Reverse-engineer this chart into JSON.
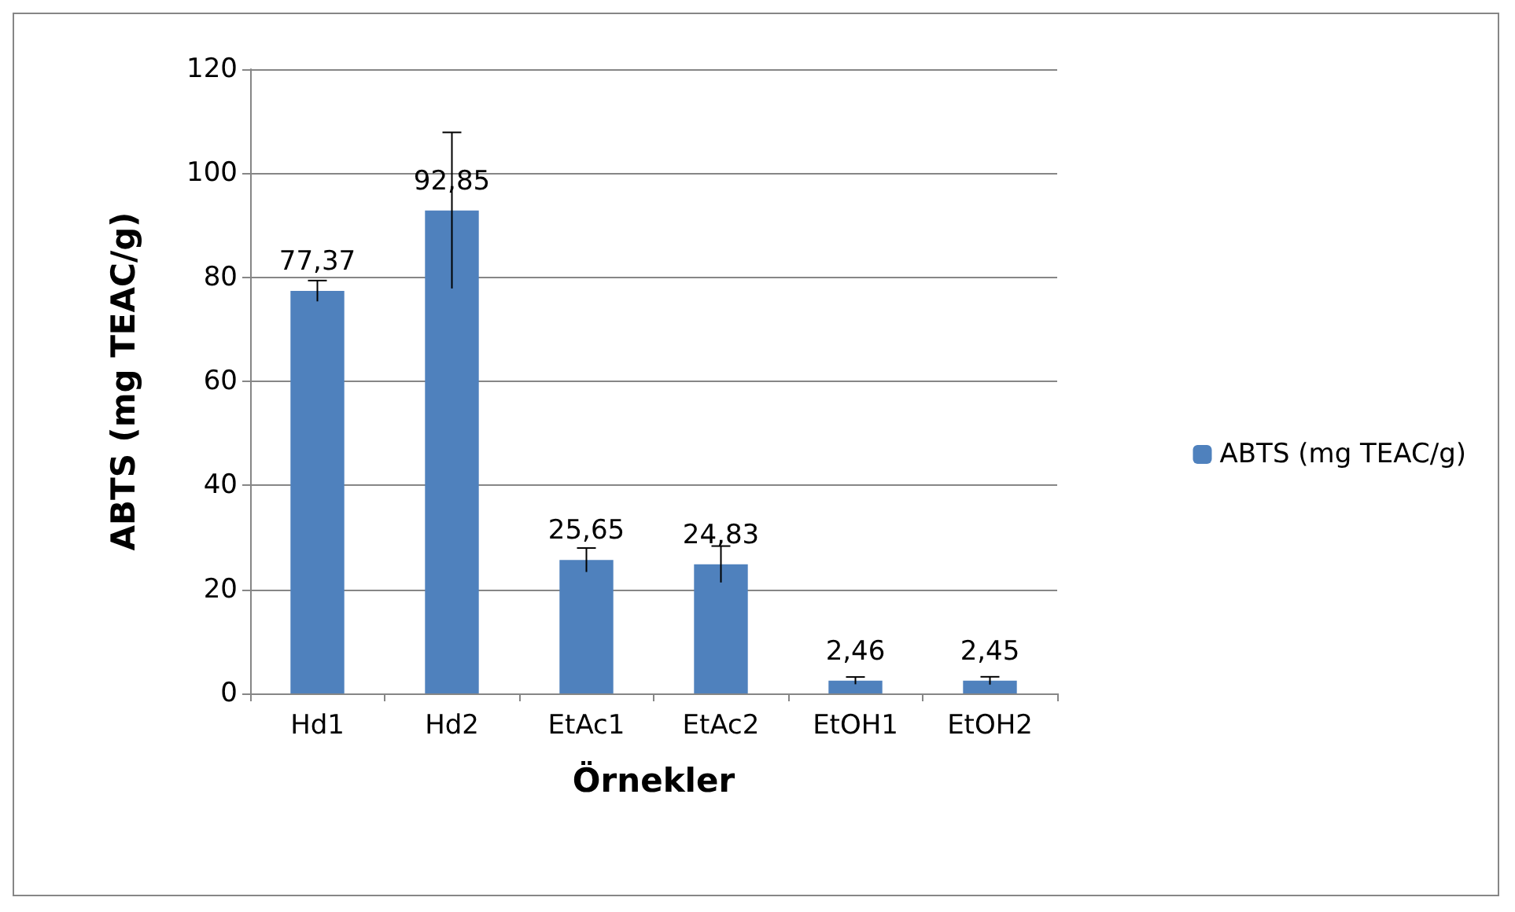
{
  "chart_data": {
    "type": "bar",
    "xlabel": "Örnekler",
    "ylabel": "ABTS (mg TEAC/g)",
    "categories": [
      "Hd1",
      "Hd2",
      "EtAc1",
      "EtAc2",
      "EtOH1",
      "EtOH2"
    ],
    "series": [
      {
        "name": "ABTS (mg TEAC/g)",
        "color": "#4f81bd",
        "values": [
          77.37,
          92.85,
          25.65,
          24.83,
          2.46,
          2.45
        ],
        "errors": [
          2.0,
          15.0,
          2.3,
          3.5,
          0.7,
          0.75
        ],
        "value_labels": [
          "77,37",
          "92,85",
          "25,65",
          "24,83",
          "2,46",
          "2,45"
        ]
      }
    ],
    "ylim": [
      0,
      120
    ],
    "yticks": [
      0,
      20,
      40,
      60,
      80,
      100,
      120
    ],
    "grid": "y",
    "legend": "right"
  }
}
